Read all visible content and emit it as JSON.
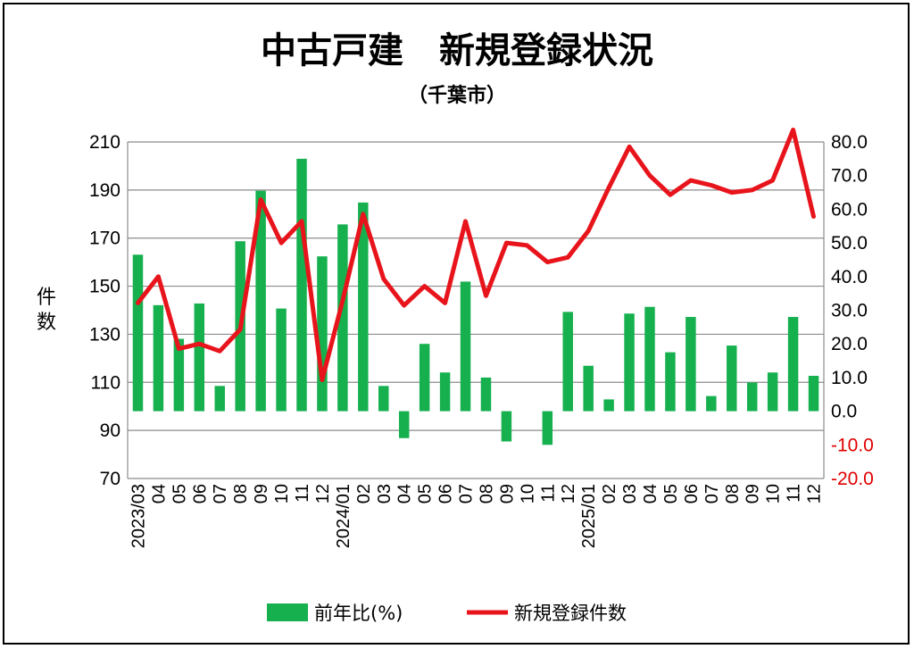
{
  "chart_data": {
    "type": "bar+line",
    "title": "中古戸建　新規登録状況",
    "subtitle": "（千葉市）",
    "ylabel_left": "件\n数",
    "ylim_left": [
      70,
      210
    ],
    "yticks_left": [
      70,
      90,
      110,
      130,
      150,
      170,
      190,
      210
    ],
    "ylim_right": [
      -20,
      80
    ],
    "yticks_right": [
      "-20.0",
      "-10.0",
      "0.0",
      "10.0",
      "20.0",
      "30.0",
      "40.0",
      "50.0",
      "60.0",
      "70.0",
      "80.0"
    ],
    "categories": [
      "2023/03",
      "04",
      "05",
      "06",
      "07",
      "08",
      "09",
      "10",
      "11",
      "12",
      "2024/01",
      "02",
      "03",
      "04",
      "05",
      "06",
      "07",
      "08",
      "09",
      "10",
      "11",
      "12",
      "2025/01",
      "02",
      "03",
      "04",
      "05",
      "06",
      "07",
      "08",
      "09",
      "10",
      "11",
      "12"
    ],
    "series": [
      {
        "name": "前年比(%)",
        "type": "bar",
        "axis": "right",
        "color": "#16b04f",
        "values": [
          46.5,
          31.5,
          21.5,
          32,
          7.5,
          50.5,
          65.5,
          30.5,
          75,
          46,
          55.5,
          62,
          7.5,
          -8,
          20,
          11.5,
          38.5,
          10,
          -9,
          0,
          -10,
          29.5,
          13.5,
          3.5,
          29,
          31,
          17.5,
          28,
          4.5,
          19.5,
          8.5,
          11.5,
          28,
          10.5
        ]
      },
      {
        "name": "新規登録件数",
        "type": "line",
        "axis": "left",
        "color": "#e8141c",
        "values": [
          143,
          154,
          124,
          126,
          123,
          132,
          186,
          168,
          177,
          111,
          144,
          180,
          153,
          142,
          150,
          143,
          177,
          146,
          168,
          167,
          160,
          162,
          173,
          191,
          208,
          196,
          188,
          194,
          192,
          189,
          190,
          194,
          215,
          179
        ]
      }
    ],
    "grid": true,
    "legend_position": "bottom"
  }
}
